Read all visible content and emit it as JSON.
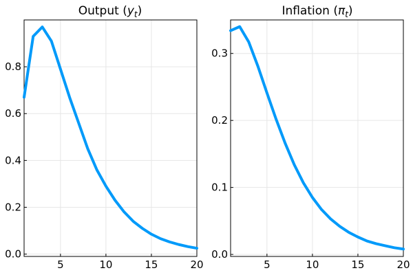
{
  "chart_data": [
    {
      "type": "line",
      "title_main": "Output (",
      "title_symbol": "y",
      "title_sub": "t",
      "title_end": ")",
      "xlim": [
        1,
        20
      ],
      "ylim": [
        -0.01,
        1.0
      ],
      "xticks": [
        5,
        10,
        15,
        20
      ],
      "yticks": [
        0.0,
        0.2,
        0.4,
        0.6,
        0.8
      ],
      "ytick_labels": [
        "0.0",
        "0.2",
        "0.4",
        "0.6",
        "0.8"
      ],
      "grid": true,
      "color": "#009AFA",
      "x": [
        1,
        2,
        3,
        4,
        5,
        6,
        7,
        8,
        9,
        10,
        11,
        12,
        13,
        14,
        15,
        16,
        17,
        18,
        19,
        20
      ],
      "values": [
        0.67,
        0.93,
        0.97,
        0.91,
        0.79,
        0.67,
        0.56,
        0.45,
        0.36,
        0.29,
        0.23,
        0.18,
        0.14,
        0.11,
        0.085,
        0.066,
        0.052,
        0.041,
        0.032,
        0.025
      ]
    },
    {
      "type": "line",
      "title_main": "Inflation (",
      "title_symbol": "π",
      "title_sub": "t",
      "title_end": ")",
      "xlim": [
        1,
        20
      ],
      "ylim": [
        -0.003,
        0.35
      ],
      "xticks": [
        5,
        10,
        15,
        20
      ],
      "yticks": [
        0.0,
        0.1,
        0.2,
        0.3
      ],
      "ytick_labels": [
        "0.0",
        "0.1",
        "0.2",
        "0.3"
      ],
      "grid": true,
      "color": "#009AFA",
      "x": [
        1,
        2,
        3,
        4,
        5,
        6,
        7,
        8,
        9,
        10,
        11,
        12,
        13,
        14,
        15,
        16,
        17,
        18,
        19,
        20
      ],
      "values": [
        0.334,
        0.34,
        0.317,
        0.281,
        0.241,
        0.202,
        0.166,
        0.134,
        0.107,
        0.085,
        0.067,
        0.053,
        0.042,
        0.033,
        0.026,
        0.02,
        0.016,
        0.013,
        0.01,
        0.008
      ]
    }
  ]
}
